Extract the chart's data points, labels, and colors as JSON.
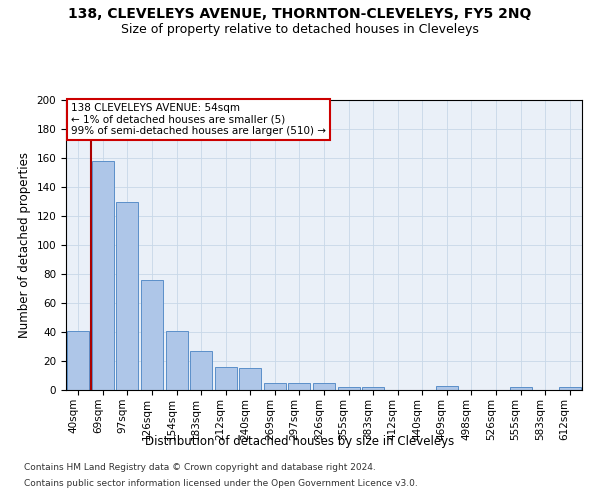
{
  "title": "138, CLEVELEYS AVENUE, THORNTON-CLEVELEYS, FY5 2NQ",
  "subtitle": "Size of property relative to detached houses in Cleveleys",
  "xlabel": "Distribution of detached houses by size in Cleveleys",
  "ylabel": "Number of detached properties",
  "categories": [
    "40sqm",
    "69sqm",
    "97sqm",
    "126sqm",
    "154sqm",
    "183sqm",
    "212sqm",
    "240sqm",
    "269sqm",
    "297sqm",
    "326sqm",
    "355sqm",
    "383sqm",
    "412sqm",
    "440sqm",
    "469sqm",
    "498sqm",
    "526sqm",
    "555sqm",
    "583sqm",
    "612sqm"
  ],
  "values": [
    41,
    158,
    130,
    76,
    41,
    27,
    16,
    15,
    5,
    5,
    5,
    2,
    2,
    0,
    0,
    3,
    0,
    0,
    2,
    0,
    2
  ],
  "bar_color": "#aec6e8",
  "bar_edge_color": "#5b8fc9",
  "annotation_text": "138 CLEVELEYS AVENUE: 54sqm\n← 1% of detached houses are smaller (5)\n99% of semi-detached houses are larger (510) →",
  "annotation_box_color": "#ffffff",
  "annotation_box_edge_color": "#cc0000",
  "red_line_color": "#aa0000",
  "ylim": [
    0,
    200
  ],
  "yticks": [
    0,
    20,
    40,
    60,
    80,
    100,
    120,
    140,
    160,
    180,
    200
  ],
  "footer_line1": "Contains HM Land Registry data © Crown copyright and database right 2024.",
  "footer_line2": "Contains public sector information licensed under the Open Government Licence v3.0.",
  "grid_color": "#c8d8e8",
  "background_color": "#eaf0f8",
  "title_fontsize": 10,
  "subtitle_fontsize": 9,
  "tick_fontsize": 7.5,
  "label_fontsize": 8.5,
  "footer_fontsize": 6.5
}
